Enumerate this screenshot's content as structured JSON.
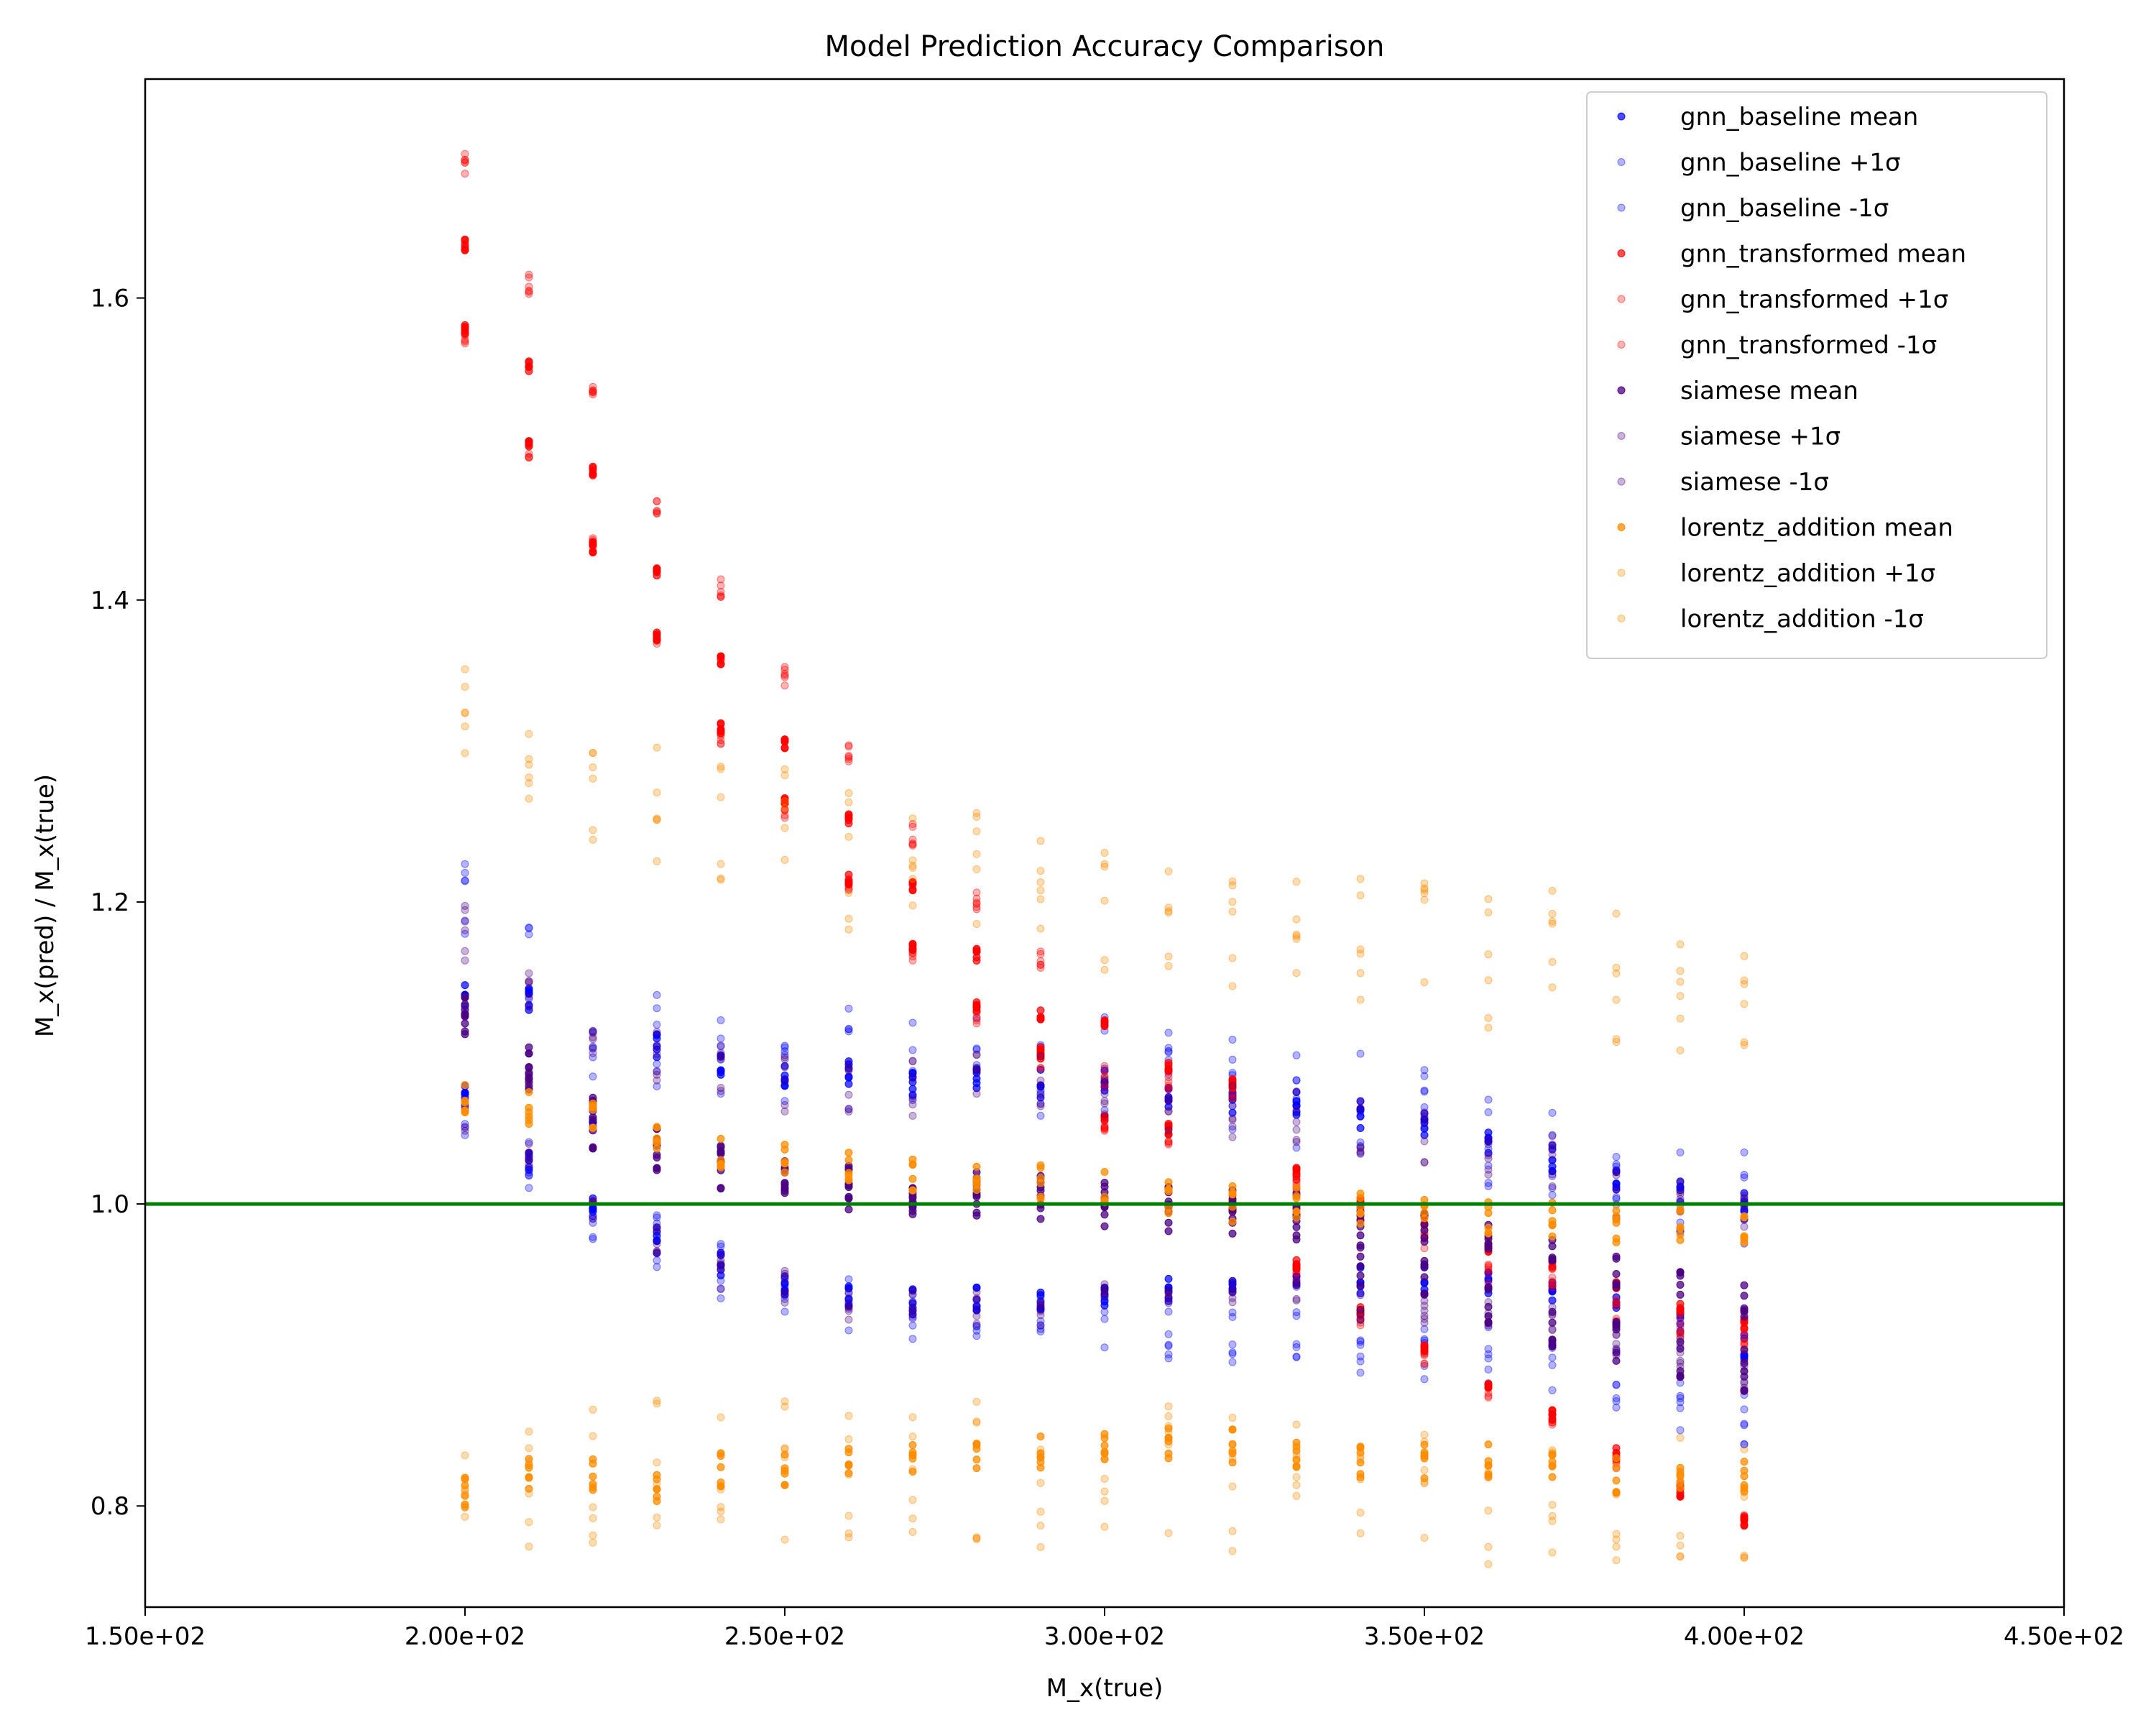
{
  "chart_data": {
    "type": "scatter",
    "title": "Model Prediction Accuracy Comparison",
    "xlabel": "M_x(true)",
    "ylabel": "M_x(pred) / M_x(true)",
    "xlim": [
      150,
      450
    ],
    "ylim": [
      0.733,
      1.745
    ],
    "xticks": [
      150,
      200,
      250,
      300,
      350,
      400,
      450
    ],
    "xtick_labels": [
      "1.50e+02",
      "2.00e+02",
      "2.50e+02",
      "3.00e+02",
      "3.50e+02",
      "4.00e+02",
      "4.50e+02"
    ],
    "yticks": [
      0.8,
      1.0,
      1.2,
      1.4,
      1.6
    ],
    "ytick_labels": [
      "0.8",
      "1.0",
      "1.2",
      "1.4",
      "1.6"
    ],
    "reference_line": {
      "y": 1.0,
      "color": "#008000"
    },
    "grid": false,
    "legend_position": "top-right",
    "x": [
      200,
      210,
      220,
      230,
      240,
      250,
      260,
      270,
      280,
      290,
      300,
      310,
      320,
      330,
      340,
      350,
      360,
      370,
      380,
      390,
      400
    ],
    "series": [
      {
        "name": "gnn_baseline mean",
        "color": "#0000ff",
        "opacity": 0.7,
        "groups": [
          {
            "center": [
              1.135,
              1.135,
              1.06,
              1.105,
              1.09,
              1.085,
              1.085,
              1.08,
              1.085,
              1.08,
              1.085,
              1.07,
              1.07,
              1.065,
              1.06,
              1.05,
              1.04,
              1.03,
              1.015,
              1.005,
              1.0
            ],
            "spread": 0.01
          },
          {
            "center": [
              1.07,
              1.03,
              1.0,
              0.975,
              0.96,
              0.95,
              0.94,
              0.935,
              0.935,
              0.935,
              0.94,
              0.945,
              0.945,
              0.95,
              0.95,
              0.95,
              0.945,
              0.94,
              0.93,
              0.92,
              0.905
            ],
            "spread": 0.01
          }
        ]
      },
      {
        "name": "gnn_baseline +1σ",
        "color": "#0000ff",
        "opacity": 0.3,
        "groups": [
          {
            "center": [
              1.2,
              1.16,
              1.115,
              1.11,
              1.1,
              1.095,
              1.095,
              1.09,
              1.09,
              1.09,
              1.09,
              1.08,
              1.075,
              1.07,
              1.065,
              1.055,
              1.045,
              1.035,
              1.02,
              1.01,
              1.005
            ],
            "spread": 0.035
          }
        ]
      },
      {
        "name": "gnn_baseline -1σ",
        "color": "#0000ff",
        "opacity": 0.3,
        "groups": [
          {
            "center": [
              1.065,
              1.03,
              0.995,
              0.975,
              0.955,
              0.945,
              0.935,
              0.925,
              0.92,
              0.92,
              0.92,
              0.915,
              0.915,
              0.91,
              0.9,
              0.9,
              0.9,
              0.895,
              0.885,
              0.87,
              0.86
            ],
            "spread": 0.02
          }
        ]
      },
      {
        "name": "gnn_transformed mean",
        "color": "#ff0000",
        "opacity": 0.7,
        "groups": [
          {
            "center": [
              1.635,
              1.555,
              1.485,
              1.42,
              1.36,
              1.305,
              1.255,
              1.21,
              1.165,
              1.125,
              1.12,
              1.09,
              1.08,
              1.02,
              1.0,
              0.99,
              0.97,
              0.96,
              0.945,
              0.93,
              0.92
            ],
            "spread": 0.004
          },
          {
            "center": [
              1.58,
              1.505,
              1.435,
              1.375,
              1.315,
              1.265,
              1.215,
              1.17,
              1.13,
              1.1,
              1.055,
              1.05,
              1.0,
              0.96,
              0.93,
              0.905,
              0.88,
              0.86,
              0.835,
              0.81,
              0.79
            ],
            "spread": 0.004
          }
        ]
      },
      {
        "name": "gnn_transformed +1σ",
        "color": "#ff0000",
        "opacity": 0.3,
        "groups": [
          {
            "center": [
              1.69,
              1.61,
              1.535,
              1.465,
              1.41,
              1.35,
              1.3,
              1.245,
              1.2,
              1.16,
              1.085,
              1.08,
              1.075,
              1.015,
              0.995,
              0.975,
              0.955,
              0.95,
              0.93,
              0.92,
              0.91
            ],
            "spread": 0.008
          }
        ]
      },
      {
        "name": "gnn_transformed -1σ",
        "color": "#ff0000",
        "opacity": 0.3,
        "groups": [
          {
            "center": [
              1.575,
              1.5,
              1.435,
              1.37,
              1.31,
              1.26,
              1.21,
              1.165,
              1.125,
              1.095,
              1.05,
              1.045,
              0.995,
              0.955,
              0.925,
              0.9,
              0.875,
              0.855,
              0.83,
              0.81,
              0.79
            ],
            "spread": 0.006
          }
        ]
      },
      {
        "name": "siamese mean",
        "color": "#4b0082",
        "opacity": 0.75,
        "groups": [
          {
            "center": [
              1.13,
              1.09,
              1.06,
              1.04,
              1.03,
              1.02,
              1.015,
              1.01,
              1.01,
              1.01,
              1.005,
              1.0,
              1.0,
              1.0,
              0.99,
              0.985,
              0.975,
              0.965,
              0.955,
              0.945,
              0.935
            ],
            "spread": 0.012
          },
          {
            "center": [
              1.125,
              1.09,
              1.05,
              1.035,
              1.025,
              1.015,
              1.01,
              1.005,
              1.005,
              1.005,
              1.0,
              0.995,
              0.99,
              0.985,
              0.96,
              0.95,
              0.935,
              0.92,
              0.91,
              0.9,
              0.89
            ],
            "spread": 0.015
          }
        ]
      },
      {
        "name": "siamese +1σ",
        "color": "#4b0082",
        "opacity": 0.3,
        "groups": [
          {
            "center": [
              1.18,
              1.15,
              1.115,
              1.1,
              1.085,
              1.08,
              1.075,
              1.075,
              1.08,
              1.08,
              1.075,
              1.065,
              1.06,
              1.055,
              1.05,
              1.045,
              1.035,
              1.025,
              1.01,
              1.0,
              0.99
            ],
            "spread": 0.02
          }
        ]
      },
      {
        "name": "siamese -1σ",
        "color": "#4b0082",
        "opacity": 0.3,
        "groups": [
          {
            "center": [
              1.06,
              1.03,
              0.995,
              0.975,
              0.955,
              0.945,
              0.935,
              0.935,
              0.93,
              0.93,
              0.935,
              0.94,
              0.94,
              0.94,
              0.935,
              0.93,
              0.925,
              0.92,
              0.91,
              0.9,
              0.885
            ],
            "spread": 0.012
          }
        ]
      },
      {
        "name": "lorentz_addition mean",
        "color": "#ff8c00",
        "opacity": 0.75,
        "groups": [
          {
            "center": [
              1.07,
              1.065,
              1.055,
              1.045,
              1.035,
              1.03,
              1.025,
              1.02,
              1.015,
              1.015,
              1.01,
              1.005,
              1.0,
              1.0,
              0.995,
              0.995,
              0.99,
              0.99,
              0.985,
              0.985,
              0.985
            ],
            "spread": 0.012
          },
          {
            "center": [
              0.81,
              0.82,
              0.82,
              0.815,
              0.825,
              0.825,
              0.83,
              0.83,
              0.83,
              0.835,
              0.84,
              0.84,
              0.84,
              0.835,
              0.83,
              0.83,
              0.83,
              0.825,
              0.82,
              0.82,
              0.82
            ],
            "spread": 0.012
          }
        ]
      },
      {
        "name": "lorentz_addition +1σ",
        "color": "#ff8c00",
        "opacity": 0.3,
        "groups": [
          {
            "center": [
              1.32,
              1.31,
              1.29,
              1.275,
              1.245,
              1.24,
              1.23,
              1.22,
              1.215,
              1.205,
              1.2,
              1.19,
              1.18,
              1.18,
              1.175,
              1.17,
              1.165,
              1.16,
              1.155,
              1.15,
              1.145
            ],
            "spread": 0.05
          }
        ]
      },
      {
        "name": "lorentz_addition -1σ",
        "color": "#ff8c00",
        "opacity": 0.3,
        "groups": [
          {
            "center": [
              0.81,
              0.815,
              0.815,
              0.82,
              0.82,
              0.825,
              0.825,
              0.82,
              0.82,
              0.82,
              0.82,
              0.82,
              0.82,
              0.815,
              0.81,
              0.81,
              0.81,
              0.81,
              0.805,
              0.805,
              0.805
            ],
            "spread": 0.05
          }
        ]
      }
    ]
  }
}
